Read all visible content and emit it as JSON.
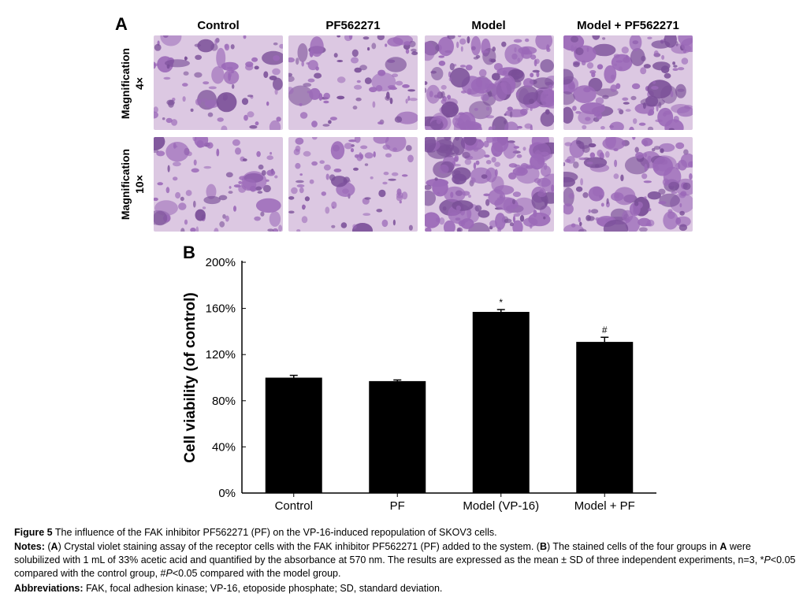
{
  "figure": {
    "panel_a_letter": "A",
    "panel_b_letter": "B",
    "columns": [
      "Control",
      "PF562271",
      "Model",
      "Model + PF562271"
    ],
    "rows": [
      {
        "line1": "Magnification",
        "line2": "4×"
      },
      {
        "line1": "Magnification",
        "line2": "10×"
      }
    ],
    "micrograph_density": [
      [
        0.3,
        0.3,
        0.85,
        0.6
      ],
      [
        0.3,
        0.3,
        0.85,
        0.65
      ]
    ],
    "colors": {
      "stain": "#9b69b8",
      "stain_dark": "#7a4f98",
      "background": "#dcc8e2",
      "bar": "#000000"
    }
  },
  "chart_data": {
    "type": "bar",
    "categories": [
      "Control",
      "PF",
      "Model (VP-16)",
      "Model + PF"
    ],
    "values": [
      100,
      97,
      157,
      131
    ],
    "errors": [
      2,
      1,
      2,
      4
    ],
    "annotations": [
      "",
      "",
      "*",
      "#"
    ],
    "ylabel": "Cell viability (of control)",
    "ylim": [
      0,
      200
    ],
    "yticks": [
      0,
      40,
      80,
      120,
      160,
      200
    ],
    "yticklabels": [
      "0%",
      "40%",
      "80%",
      "120%",
      "160%",
      "200%"
    ],
    "grid": false
  },
  "caption": {
    "title_bold": "Figure 5",
    "title_text": " The influence of the FAK inhibitor PF562271 (PF) on the VP-16-induced repopulation of SKOV3 cells.",
    "notes_label": "Notes:",
    "notes_1": " (",
    "notes_a": "A",
    "notes_2": ") Crystal violet staining assay of the receptor cells with the FAK inhibitor PF562271 (PF) added to the system. (",
    "notes_b": "B",
    "notes_3": ") The stained cells of the four groups in ",
    "notes_a2": "A",
    "notes_4": " were solubilized with 1 mL of 33% acetic acid and quantified by the absorbance at 570 nm. The results are expressed as the mean ± SD of three independent experiments, n=3, *",
    "notes_p1": "P",
    "notes_5": "<0.05 compared with the control group, #",
    "notes_p2": "P",
    "notes_6": "<0.05 compared with the model group.",
    "abbrev_label": "Abbreviations:",
    "abbrev_text": " FAK, focal adhesion kinase; VP-16, etoposide phosphate; SD, standard deviation."
  }
}
